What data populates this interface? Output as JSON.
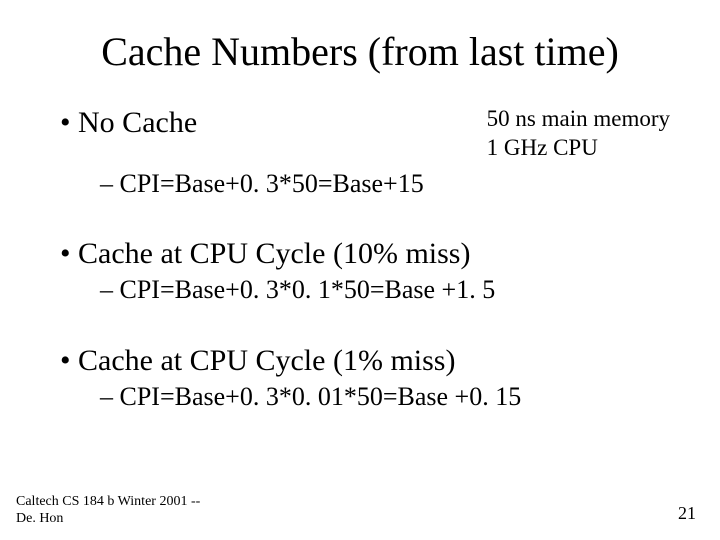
{
  "title": "Cache Numbers (from last time)",
  "note": {
    "line1": "50 ns main memory",
    "line2": "1 GHz CPU"
  },
  "items": [
    {
      "heading": "No Cache",
      "sub": "CPI=Base+0. 3*50=Base+15"
    },
    {
      "heading": "Cache at CPU Cycle (10% miss)",
      "sub": "CPI=Base+0. 3*0. 1*50=Base +1. 5"
    },
    {
      "heading": "Cache at CPU Cycle (1% miss)",
      "sub": "CPI=Base+0. 3*0. 01*50=Base +0. 15"
    }
  ],
  "footer": "Caltech CS 184 b Winter 2001 -- De. Hon",
  "page": "21",
  "bullets": {
    "l1": "•",
    "l2": "–"
  }
}
